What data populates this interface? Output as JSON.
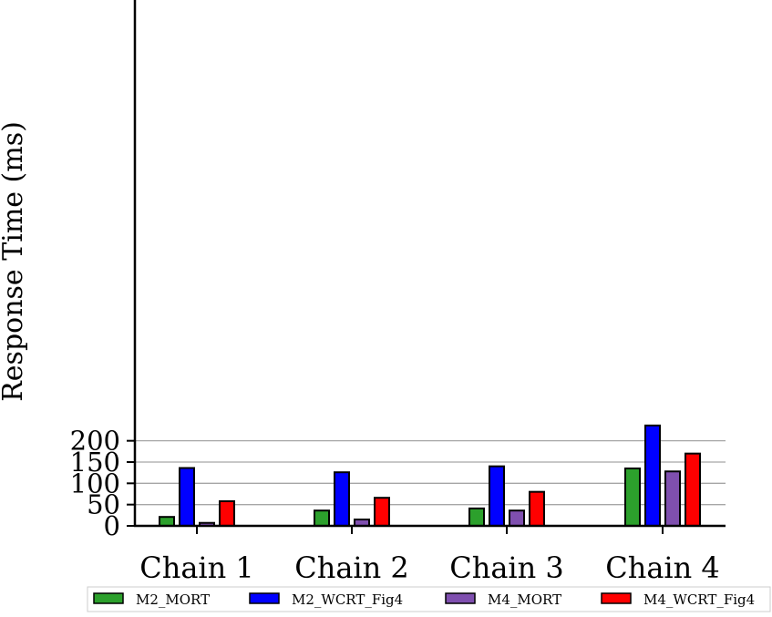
{
  "chart_data": {
    "type": "bar",
    "title": "",
    "xlabel": "",
    "ylabel": "Response Time (ms)",
    "categories": [
      "Chain 1",
      "Chain 2",
      "Chain 3",
      "Chain 4"
    ],
    "series": [
      {
        "name": "M2_MORT",
        "color": "#2ca02c",
        "values": [
          21,
          36,
          41,
          135
        ]
      },
      {
        "name": "M2_WCRT_Fig4",
        "color": "#0000ff",
        "values": [
          136,
          126,
          140,
          236
        ]
      },
      {
        "name": "M4_MORT",
        "color": "#7f4faf",
        "values": [
          7,
          15,
          36,
          128
        ]
      },
      {
        "name": "M4_WCRT_Fig4",
        "color": "#ff0000",
        "values": [
          58,
          66,
          80,
          170
        ]
      }
    ],
    "ylim": [
      0,
      250
    ],
    "yticks": [
      0,
      50,
      100,
      150,
      200
    ],
    "grid": "y-major",
    "legend_position": "bottom-center"
  }
}
